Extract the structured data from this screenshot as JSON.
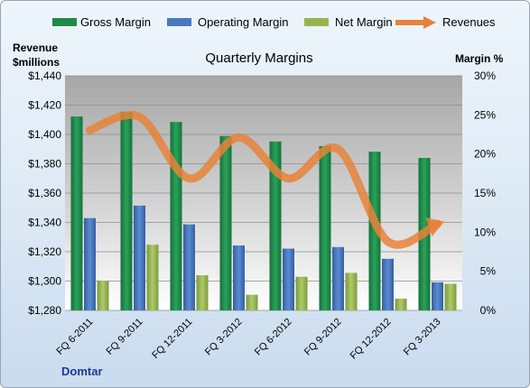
{
  "chart_data": {
    "type": "bar",
    "title": "Quarterly Margins",
    "ylabel_left_line1": "Revenue",
    "ylabel_left_line2": "$millions",
    "ylabel_right": "Margin %",
    "source_label": "Domtar",
    "categories": [
      "FQ 6-2011",
      "FQ 9-2011",
      "FQ 12-2011",
      "FQ 3-2012",
      "FQ 6-2012",
      "FQ 9-2012",
      "FQ 12-2012",
      "FQ 3-2013"
    ],
    "ylim_left": [
      1280,
      1440
    ],
    "yticks_left": [
      "$1,280",
      "$1,300",
      "$1,320",
      "$1,340",
      "$1,360",
      "$1,380",
      "$1,400",
      "$1,420",
      "$1,440"
    ],
    "ylim_right": [
      0,
      30
    ],
    "yticks_right": [
      "0%",
      "5%",
      "10%",
      "15%",
      "20%",
      "25%",
      "30%"
    ],
    "legend_position": "top",
    "series": [
      {
        "name": "Gross Margin",
        "axis": "right",
        "color": "#1e8a4a",
        "values": [
          24.8,
          25.4,
          24.1,
          22.3,
          21.6,
          21.0,
          20.3,
          19.5
        ]
      },
      {
        "name": "Operating Margin",
        "axis": "right",
        "color": "#4a78c2",
        "values": [
          11.8,
          13.4,
          11.0,
          8.3,
          7.9,
          8.1,
          6.6,
          3.6
        ]
      },
      {
        "name": "Net Margin",
        "axis": "right",
        "color": "#95b64f",
        "values": [
          3.8,
          8.4,
          4.5,
          2.0,
          4.3,
          4.8,
          1.5,
          3.4
        ]
      },
      {
        "name": "Revenues",
        "axis": "left",
        "type": "line",
        "color": "#e8823a",
        "values": [
          1403,
          1412,
          1370,
          1398,
          1370,
          1390,
          1327,
          1339
        ]
      }
    ]
  }
}
